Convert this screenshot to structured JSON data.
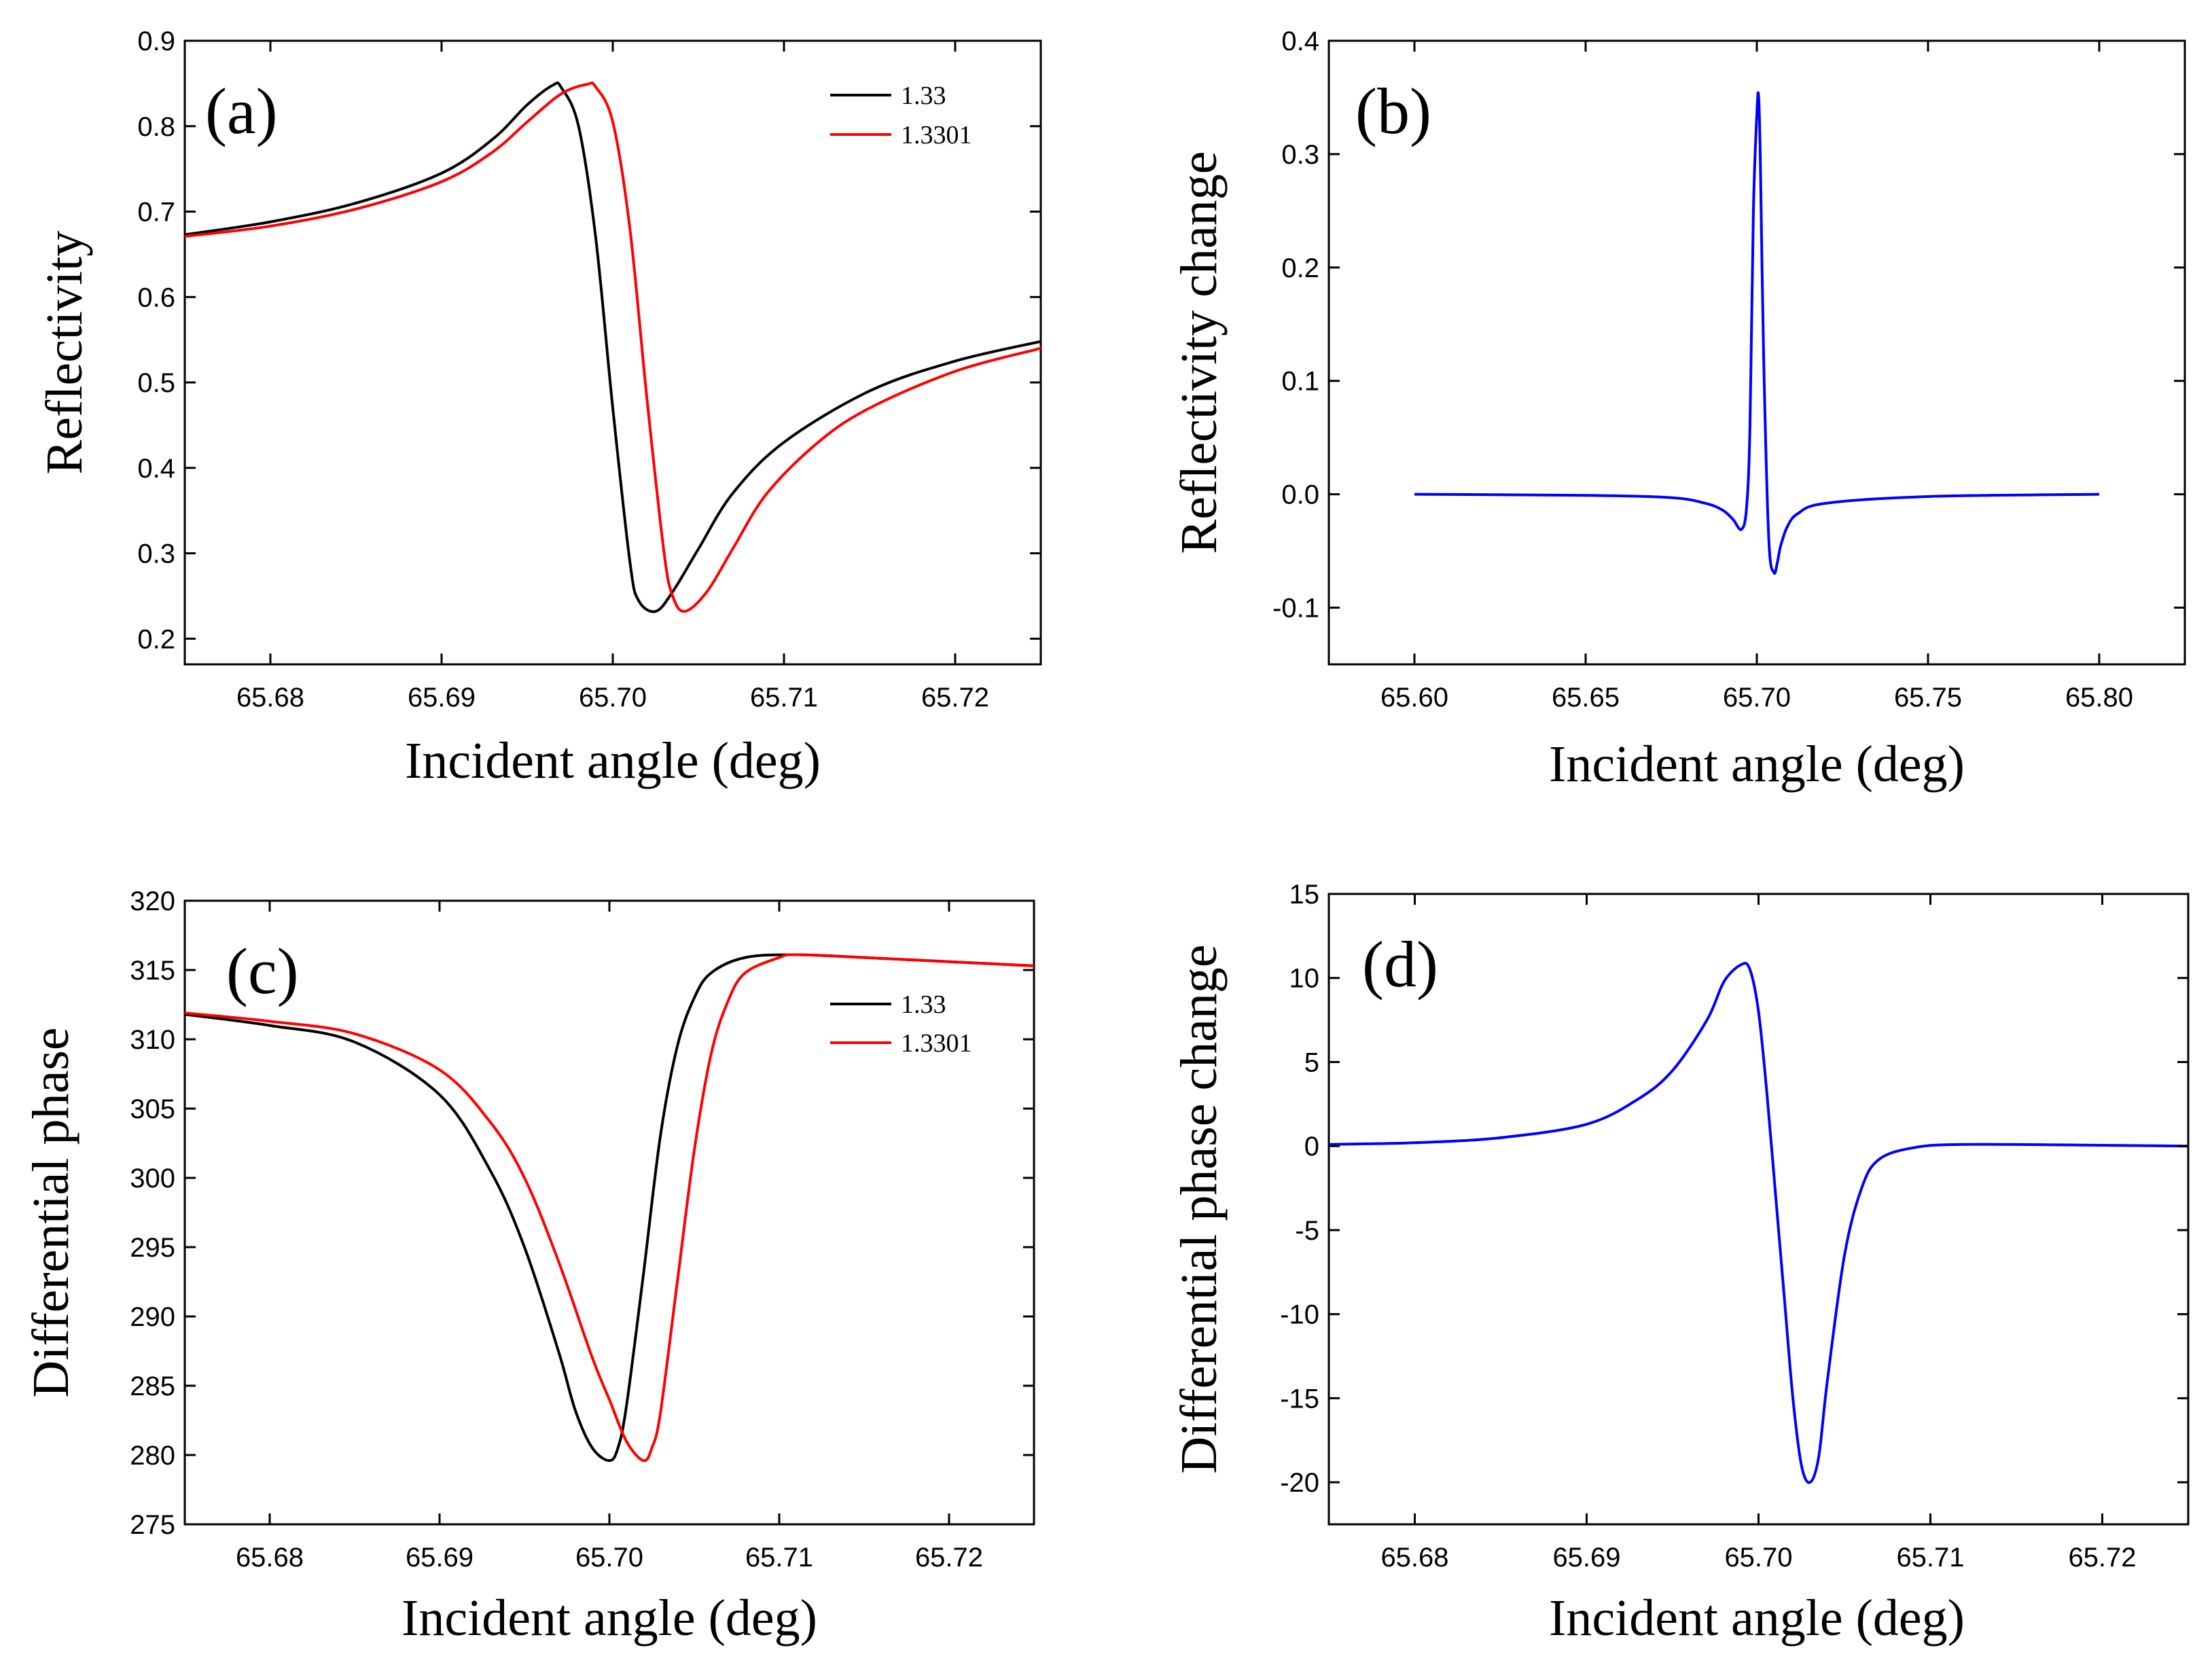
{
  "chart_data": [
    {
      "panel": "(a)",
      "type": "line",
      "xlabel": "Incident angle (deg)",
      "ylabel": "Reflectivity",
      "xlim": [
        65.675,
        65.725
      ],
      "ylim": [
        0.17,
        0.9
      ],
      "xticks": [
        "65.68",
        "65.69",
        "65.70",
        "65.71",
        "65.72"
      ],
      "yticks": [
        "0.2",
        "0.3",
        "0.4",
        "0.5",
        "0.6",
        "0.7",
        "0.8",
        "0.9"
      ],
      "legend": "top-right",
      "series": [
        {
          "name": "1.33",
          "color": "#000000",
          "x": [
            65.675,
            65.68,
            65.685,
            65.69,
            65.693,
            65.695,
            65.6965,
            65.697,
            65.698,
            65.699,
            65.7,
            65.701,
            65.7015,
            65.7025,
            65.7035,
            65.705,
            65.707,
            65.71,
            65.715,
            65.72,
            65.725
          ],
          "y": [
            0.673,
            0.688,
            0.71,
            0.745,
            0.785,
            0.825,
            0.848,
            0.845,
            0.8,
            0.67,
            0.47,
            0.29,
            0.245,
            0.232,
            0.255,
            0.305,
            0.37,
            0.43,
            0.49,
            0.525,
            0.548
          ]
        },
        {
          "name": "1.3301",
          "color": "#ff0000",
          "x": [
            65.675,
            65.68,
            65.685,
            65.69,
            65.693,
            65.695,
            65.697,
            65.6985,
            65.699,
            65.7,
            65.701,
            65.702,
            65.703,
            65.7035,
            65.7042,
            65.7055,
            65.707,
            65.709,
            65.712,
            65.715,
            65.72,
            65.725
          ],
          "y": [
            0.671,
            0.683,
            0.703,
            0.735,
            0.77,
            0.805,
            0.838,
            0.849,
            0.846,
            0.805,
            0.68,
            0.48,
            0.3,
            0.25,
            0.232,
            0.255,
            0.305,
            0.37,
            0.43,
            0.47,
            0.513,
            0.54
          ]
        }
      ]
    },
    {
      "panel": "(b)",
      "type": "line",
      "xlabel": "Incident angle (deg)",
      "ylabel": "Reflectivity change",
      "xlim": [
        65.575,
        65.825
      ],
      "ylim": [
        -0.15,
        0.4
      ],
      "xticks": [
        "65.60",
        "65.65",
        "65.70",
        "65.75",
        "65.80"
      ],
      "yticks": [
        "-0.1",
        "0.0",
        "0.1",
        "0.2",
        "0.3",
        "0.4"
      ],
      "series": [
        {
          "name": "",
          "color": "#0000ff",
          "x": [
            65.6,
            65.65,
            65.675,
            65.685,
            65.69,
            65.693,
            65.6955,
            65.697,
            65.698,
            65.699,
            65.7,
            65.7005,
            65.701,
            65.702,
            65.7035,
            65.705,
            65.706,
            65.707,
            65.709,
            65.712,
            65.72,
            65.75,
            65.8
          ],
          "y": [
            0.0,
            -0.001,
            -0.003,
            -0.008,
            -0.014,
            -0.022,
            -0.031,
            -0.012,
            0.06,
            0.25,
            0.335,
            0.352,
            0.3,
            0.12,
            -0.04,
            -0.069,
            -0.06,
            -0.045,
            -0.028,
            -0.017,
            -0.008,
            -0.002,
            0.0
          ]
        }
      ]
    },
    {
      "panel": "(c)",
      "type": "line",
      "xlabel": "Incident angle (deg)",
      "ylabel": "Differential phase",
      "xlim": [
        65.675,
        65.725
      ],
      "ylim": [
        275,
        320
      ],
      "xticks": [
        "65.68",
        "65.69",
        "65.70",
        "65.71",
        "65.72"
      ],
      "yticks": [
        "275",
        "280",
        "285",
        "290",
        "295",
        "300",
        "305",
        "310",
        "315",
        "320"
      ],
      "legend": "top-right",
      "series": [
        {
          "name": "1.33",
          "color": "#000000",
          "x": [
            65.675,
            65.68,
            65.685,
            65.69,
            65.693,
            65.695,
            65.697,
            65.698,
            65.699,
            65.7,
            65.7005,
            65.701,
            65.702,
            65.703,
            65.704,
            65.705,
            65.706,
            65.708,
            65.711,
            65.715,
            65.72,
            65.725
          ],
          "y": [
            311.8,
            311.0,
            309.8,
            306.0,
            300.5,
            295.0,
            287.5,
            283.2,
            280.5,
            279.6,
            280.5,
            283.5,
            293.0,
            303.0,
            309.5,
            313.0,
            314.8,
            315.9,
            316.1,
            315.9,
            315.6,
            315.3
          ]
        },
        {
          "name": "1.3301",
          "color": "#ff0000",
          "x": [
            65.675,
            65.68,
            65.685,
            65.69,
            65.693,
            65.695,
            65.697,
            65.699,
            65.7,
            65.701,
            65.702,
            65.7025,
            65.703,
            65.704,
            65.705,
            65.706,
            65.707,
            65.708,
            65.71,
            65.711,
            65.715,
            65.72,
            65.725
          ],
          "y": [
            311.9,
            311.3,
            310.4,
            307.8,
            304.0,
            300.0,
            294.0,
            287.0,
            284.0,
            281.0,
            279.6,
            280.5,
            283.0,
            292.5,
            302.0,
            309.0,
            312.8,
            314.8,
            315.9,
            316.1,
            315.9,
            315.6,
            315.3
          ]
        }
      ]
    },
    {
      "panel": "(d)",
      "type": "line",
      "xlabel": "Incident angle (deg)",
      "ylabel": "Differential phase change",
      "xlim": [
        65.675,
        65.725
      ],
      "ylim": [
        -22.5,
        15
      ],
      "xticks": [
        "65.68",
        "65.69",
        "65.70",
        "65.71",
        "65.72"
      ],
      "yticks": [
        "-20",
        "-15",
        "-10",
        "-5",
        "0",
        "5",
        "10",
        "15"
      ],
      "series": [
        {
          "name": "",
          "color": "#0000ff",
          "x": [
            65.675,
            65.68,
            65.685,
            65.69,
            65.693,
            65.695,
            65.697,
            65.698,
            65.699,
            65.6995,
            65.7,
            65.7005,
            65.701,
            65.7015,
            65.702,
            65.7025,
            65.703,
            65.7035,
            65.704,
            65.705,
            65.706,
            65.707,
            65.709,
            65.712,
            65.72,
            65.725
          ],
          "y": [
            0.1,
            0.2,
            0.5,
            1.3,
            2.8,
            4.5,
            7.5,
            9.8,
            10.8,
            10.5,
            8.0,
            3.0,
            -3.0,
            -9.0,
            -15.0,
            -19.0,
            -20.0,
            -18.5,
            -14.0,
            -6.5,
            -2.5,
            -0.8,
            -0.1,
            0.1,
            0.05,
            0.0
          ]
        }
      ]
    }
  ]
}
